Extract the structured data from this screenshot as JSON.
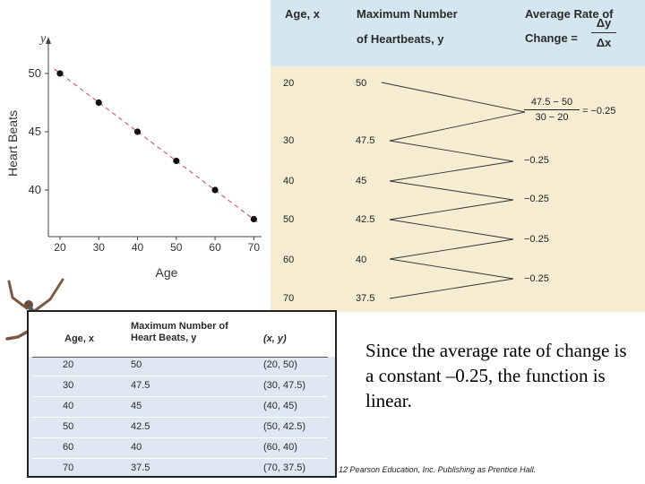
{
  "chart_data": {
    "type": "scatter",
    "x": [
      20,
      30,
      40,
      50,
      60,
      70
    ],
    "y": [
      50,
      47.5,
      45,
      42.5,
      40,
      37.5
    ],
    "trend_line": {
      "style": "dashed",
      "color": "#d2416b",
      "from": [
        18.5,
        50.4
      ],
      "to": [
        71.5,
        37.1
      ]
    },
    "xlabel": "Age",
    "ylabel": "Heart Beats",
    "y_axis_symbol": "y",
    "xlim": [
      17,
      72
    ],
    "ylim": [
      36,
      53
    ],
    "xticks": [
      20,
      30,
      40,
      50,
      60,
      70
    ],
    "yticks": [
      40,
      45,
      50
    ],
    "grid": false
  },
  "rate_panel": {
    "headers": {
      "age": "Age, x",
      "heartbeats_line1": "Maximum Number",
      "heartbeats_line2": "of Heartbeats, y",
      "rate_line1": "Average Rate of",
      "rate_line2": "Change =",
      "delta_y": "Δy",
      "delta_x": "Δx"
    },
    "ages": [
      "20",
      "30",
      "40",
      "50",
      "60",
      "70"
    ],
    "beats": [
      "50",
      "47.5",
      "45",
      "42.5",
      "40",
      "37.5"
    ],
    "first_rate": {
      "numerator": "47.5 − 50",
      "denominator": "30 − 20",
      "result": "= −0.25"
    },
    "rates": [
      "−0.25",
      "−0.25",
      "−0.25",
      "−0.25"
    ]
  },
  "table": {
    "headers": {
      "age": "Age, x",
      "beats_line1": "Maximum Number of",
      "beats_line2": "Heart Beats, y",
      "point": "(x, y)"
    },
    "rows": [
      {
        "age": "20",
        "beats": "50",
        "point": "(20, 50)"
      },
      {
        "age": "30",
        "beats": "47.5",
        "point": "(30, 47.5)"
      },
      {
        "age": "40",
        "beats": "45",
        "point": "(40, 45)"
      },
      {
        "age": "50",
        "beats": "42.5",
        "point": "(50, 42.5)"
      },
      {
        "age": "60",
        "beats": "40",
        "point": "(60, 40)"
      },
      {
        "age": "70",
        "beats": "37.5",
        "point": "(70, 37.5)"
      }
    ]
  },
  "statement": "Since the average rate of change is a constant –0.25, the function is linear.",
  "copyright": "12 Pearson Education, Inc. Publishing as Prentice Hall."
}
